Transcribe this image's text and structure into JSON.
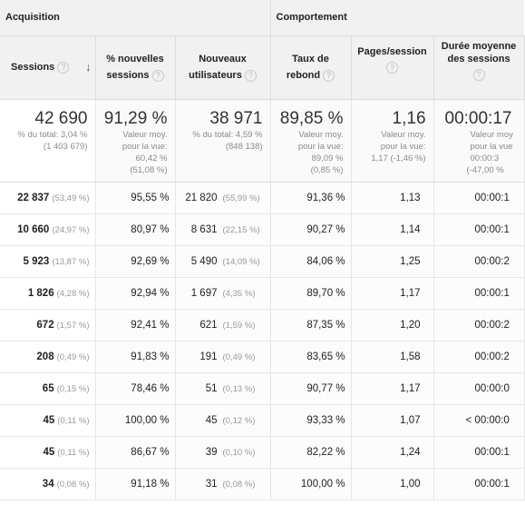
{
  "groups": {
    "acquisition": "Acquisition",
    "behavior": "Comportement"
  },
  "headers": {
    "sessions": "Sessions",
    "new_sessions_line1": "% nouvelles",
    "new_sessions_line2": "sessions",
    "new_users_line1": "Nouveaux",
    "new_users_line2": "utilisateurs",
    "bounce_line1": "Taux de",
    "bounce_line2": "rebond",
    "pages": "Pages/session",
    "duration_line1": "Durée moyenne",
    "duration_line2": "des sessions"
  },
  "icons": {
    "help": "help-circle-icon",
    "sort": "sort-down-arrow-icon"
  },
  "totals": {
    "sessions": {
      "value": "42 690",
      "l1": "% du total: 3,04 %",
      "l2": "(1 403 679)"
    },
    "new_sessions": {
      "value": "91,29 %",
      "l1": "Valeur moy.",
      "l2": "pour la vue:",
      "l3": "60,42 %",
      "l4": "(51,08 %)"
    },
    "new_users": {
      "value": "38 971",
      "l1": "% du total: 4,59 %",
      "l2": "(848 138)"
    },
    "bounce": {
      "value": "89,85 %",
      "l1": "Valeur moy.",
      "l2": "pour la vue:",
      "l3": "89,09 %",
      "l4": "(0,85 %)"
    },
    "pages": {
      "value": "1,16",
      "l1": "Valeur moy.",
      "l2": "pour la vue:",
      "l3": "1,17 (-1,46 %)"
    },
    "duration": {
      "value": "00:00:17",
      "l1": "Valeur moy",
      "l2": "pour la vue",
      "l3": "00:00:3",
      "l4": "(-47,00 %"
    }
  },
  "rows": [
    {
      "sessions": "22 837",
      "sessions_pct": "(53,49 %)",
      "new_sessions": "95,55 %",
      "new_users": "21 820",
      "new_users_pct": "(55,99 %)",
      "bounce": "91,36 %",
      "pages": "1,13",
      "duration": "00:00:1"
    },
    {
      "sessions": "10 660",
      "sessions_pct": "(24,97 %)",
      "new_sessions": "80,97 %",
      "new_users": "8 631",
      "new_users_pct": "(22,15 %)",
      "bounce": "90,27 %",
      "pages": "1,14",
      "duration": "00:00:1"
    },
    {
      "sessions": "5 923",
      "sessions_pct": "(13,87 %)",
      "new_sessions": "92,69 %",
      "new_users": "5 490",
      "new_users_pct": "(14,09 %)",
      "bounce": "84,06 %",
      "pages": "1,25",
      "duration": "00:00:2"
    },
    {
      "sessions": "1 826",
      "sessions_pct": "(4,28 %)",
      "new_sessions": "92,94 %",
      "new_users": "1 697",
      "new_users_pct": "(4,35 %)",
      "bounce": "89,70 %",
      "pages": "1,17",
      "duration": "00:00:1"
    },
    {
      "sessions": "672",
      "sessions_pct": "(1,57 %)",
      "new_sessions": "92,41 %",
      "new_users": "621",
      "new_users_pct": "(1,59 %)",
      "bounce": "87,35 %",
      "pages": "1,20",
      "duration": "00:00:2"
    },
    {
      "sessions": "208",
      "sessions_pct": "(0,49 %)",
      "new_sessions": "91,83 %",
      "new_users": "191",
      "new_users_pct": "(0,49 %)",
      "bounce": "83,65 %",
      "pages": "1,58",
      "duration": "00:00:2"
    },
    {
      "sessions": "65",
      "sessions_pct": "(0,15 %)",
      "new_sessions": "78,46 %",
      "new_users": "51",
      "new_users_pct": "(0,13 %)",
      "bounce": "90,77 %",
      "pages": "1,17",
      "duration": "00:00:0"
    },
    {
      "sessions": "45",
      "sessions_pct": "(0,11 %)",
      "new_sessions": "100,00 %",
      "new_users": "45",
      "new_users_pct": "(0,12 %)",
      "bounce": "93,33 %",
      "pages": "1,07",
      "duration": "< 00:00:0"
    },
    {
      "sessions": "45",
      "sessions_pct": "(0,11 %)",
      "new_sessions": "86,67 %",
      "new_users": "39",
      "new_users_pct": "(0,10 %)",
      "bounce": "82,22 %",
      "pages": "1,24",
      "duration": "00:00:1"
    },
    {
      "sessions": "34",
      "sessions_pct": "(0,08 %)",
      "new_sessions": "91,18 %",
      "new_users": "31",
      "new_users_pct": "(0,08 %)",
      "bounce": "100,00 %",
      "pages": "1,00",
      "duration": "00:00:1"
    }
  ]
}
